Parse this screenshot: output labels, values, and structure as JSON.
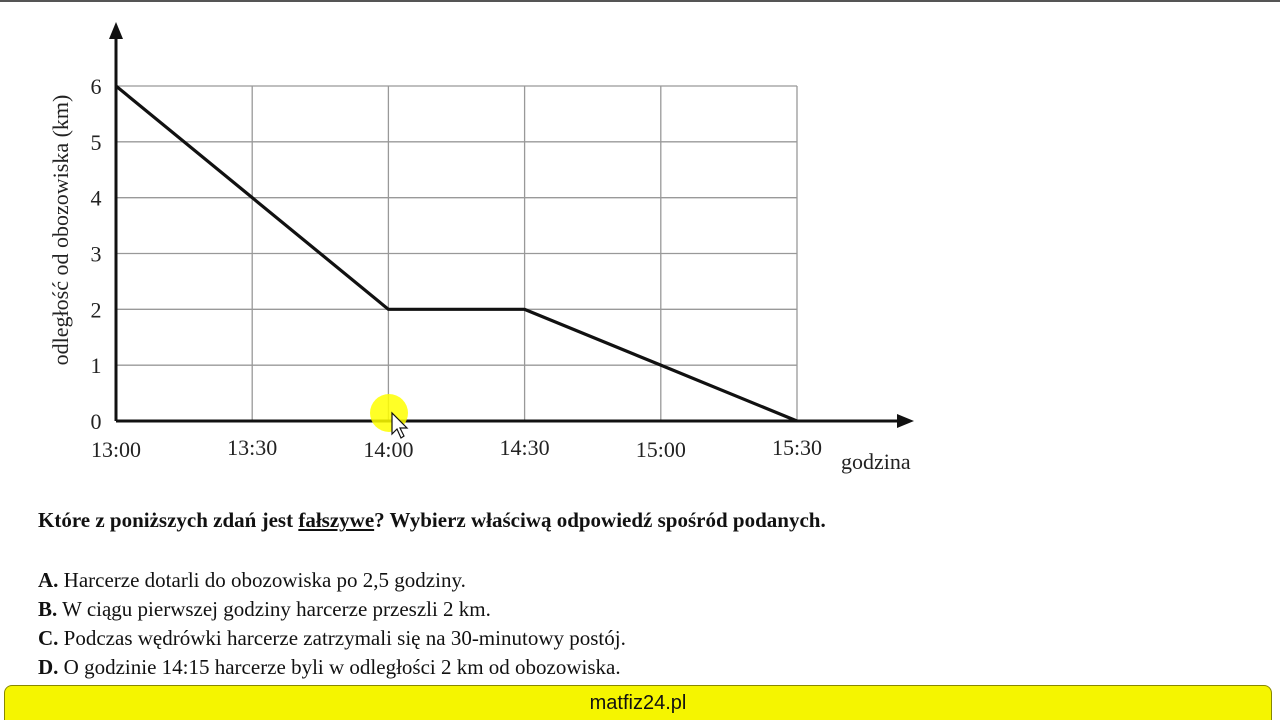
{
  "chart_data": {
    "type": "line",
    "title": "",
    "xlabel": "godzina",
    "ylabel": "odległość od obozowiska (km)",
    "x_ticks": [
      "13:00",
      "13:30",
      "14:00",
      "14:30",
      "15:00",
      "15:30"
    ],
    "y_ticks": [
      "0",
      "1",
      "2",
      "3",
      "4",
      "5",
      "6"
    ],
    "xlim": [
      "13:00",
      "15:30"
    ],
    "ylim": [
      0,
      6
    ],
    "grid": true,
    "legend": "none",
    "series": [
      {
        "points": [
          {
            "x": "13:00",
            "y": 6
          },
          {
            "x": "13:30",
            "y": 4
          },
          {
            "x": "14:00",
            "y": 2
          },
          {
            "x": "14:30",
            "y": 2
          },
          {
            "x": "15:00",
            "y": 1
          },
          {
            "x": "15:30",
            "y": 0
          }
        ]
      }
    ]
  },
  "question": {
    "before": "Które z poniższych zdań jest ",
    "underlined": "fałszywe",
    "after": "? Wybierz właściwą odpowiedź spośród podanych."
  },
  "options": [
    {
      "letter": "A.",
      "text": " Harcerze dotarli do obozowiska po 2,5 godziny."
    },
    {
      "letter": "B.",
      "text": " W ciągu pierwszej godziny harcerze przeszli 2 km."
    },
    {
      "letter": "C.",
      "text": " Podczas wędrówki harcerze zatrzymali się na 30-minutowy postój."
    },
    {
      "letter": "D.",
      "text": " O godzinie 14:15 harcerze byli w odległości 2 km od obozowiska."
    }
  ],
  "footer": {
    "text": "matfiz24.pl"
  },
  "colors": {
    "footer_bg": "#f5f500",
    "cursor_highlight": "#ffff00",
    "line": "#111111",
    "grid": "#999999"
  }
}
